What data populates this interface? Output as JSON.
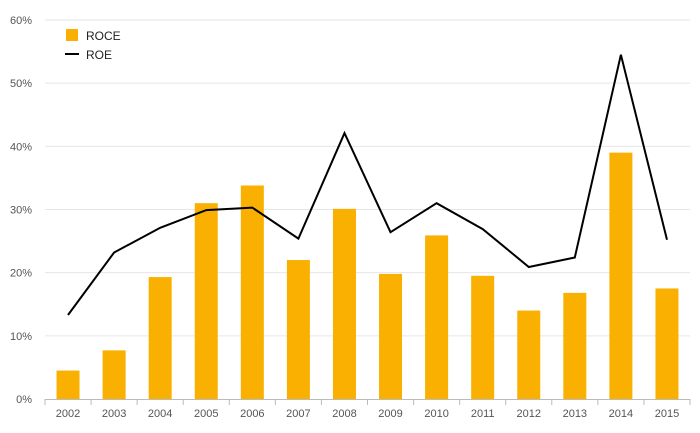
{
  "chart_data": {
    "type": "bar",
    "categories": [
      "2002",
      "2003",
      "2004",
      "2005",
      "2006",
      "2007",
      "2008",
      "2009",
      "2010",
      "2011",
      "2012",
      "2013",
      "2014",
      "2015"
    ],
    "series": [
      {
        "name": "ROCE",
        "type": "bar",
        "color": "#F9B000",
        "values": [
          4.5,
          7.7,
          19.3,
          31.0,
          33.8,
          22.0,
          30.1,
          19.8,
          25.9,
          19.5,
          14.0,
          16.8,
          39.0,
          17.5
        ]
      },
      {
        "name": "ROE",
        "type": "line",
        "color": "#000000",
        "values": [
          13.3,
          23.2,
          27.1,
          29.9,
          30.3,
          25.4,
          42.1,
          26.4,
          31.0,
          26.9,
          20.9,
          22.4,
          54.5,
          25.2
        ]
      }
    ],
    "y_ticks": [
      "0%",
      "10%",
      "20%",
      "30%",
      "40%",
      "50%",
      "60%"
    ],
    "ylim": [
      0,
      60
    ],
    "y_unit": "%",
    "grid": true,
    "legend_position": "top-left",
    "title": "",
    "xlabel": "",
    "ylabel": ""
  }
}
